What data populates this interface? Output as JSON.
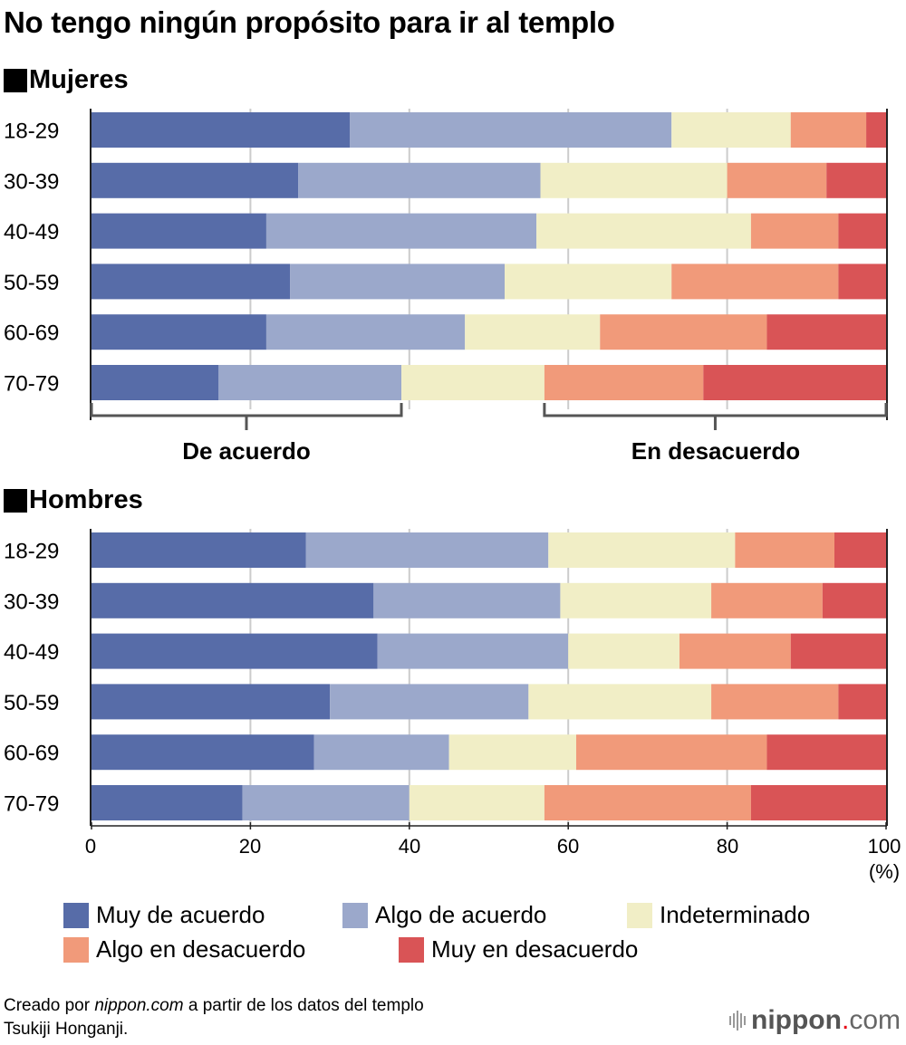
{
  "title": "No tengo ningún propósito para ir al templo",
  "sections": [
    {
      "label": "Mujeres"
    },
    {
      "label": "Hombres"
    }
  ],
  "brackets": {
    "agree": "De acuerdo",
    "disagree": "En desacuerdo"
  },
  "x_axis": {
    "ticks": [
      "0",
      "20",
      "40",
      "60",
      "80",
      "100"
    ],
    "unit": "(%)"
  },
  "legend": [
    {
      "label": "Muy de acuerdo",
      "color": "#576ca8"
    },
    {
      "label": "Algo de acuerdo",
      "color": "#9ba8cb"
    },
    {
      "label": "Indeterminado",
      "color": "#f1eec6"
    },
    {
      "label": "Algo en desacuerdo",
      "color": "#f19a7a"
    },
    {
      "label": "Muy en desacuerdo",
      "color": "#d95456"
    }
  ],
  "source": {
    "prefix": "Creado por ",
    "site": "nippon.com",
    "suffix": " a partir de los datos del templo",
    "line2": "Tsukiji Honganji."
  },
  "brand": {
    "name": "nippon",
    "dot": ".",
    "tld": "com"
  },
  "chart_data": [
    {
      "type": "bar",
      "stacked": true,
      "orientation": "horizontal",
      "title": "Mujeres",
      "xlabel": "(%)",
      "xlim": [
        0,
        100
      ],
      "xticks": [
        0,
        20,
        40,
        60,
        80,
        100
      ],
      "grid": true,
      "categories": [
        "18-29",
        "30-39",
        "40-49",
        "50-59",
        "60-69",
        "70-79"
      ],
      "series": [
        {
          "name": "Muy de acuerdo",
          "values": [
            32.5,
            26,
            22,
            25,
            22,
            16
          ]
        },
        {
          "name": "Algo de acuerdo",
          "values": [
            40.5,
            30.5,
            34,
            27,
            25,
            23
          ]
        },
        {
          "name": "Indeterminado",
          "values": [
            15,
            23.5,
            27,
            21,
            17,
            18
          ]
        },
        {
          "name": "Algo en desacuerdo",
          "values": [
            9.5,
            12.5,
            11,
            21,
            21,
            20
          ]
        },
        {
          "name": "Muy en desacuerdo",
          "values": [
            2.5,
            7.5,
            6,
            6,
            15,
            23
          ]
        }
      ]
    },
    {
      "type": "bar",
      "stacked": true,
      "orientation": "horizontal",
      "title": "Hombres",
      "xlabel": "(%)",
      "xlim": [
        0,
        100
      ],
      "xticks": [
        0,
        20,
        40,
        60,
        80,
        100
      ],
      "grid": true,
      "categories": [
        "18-29",
        "30-39",
        "40-49",
        "50-59",
        "60-69",
        "70-79"
      ],
      "series": [
        {
          "name": "Muy de acuerdo",
          "values": [
            27,
            35.5,
            36,
            30,
            28,
            19
          ]
        },
        {
          "name": "Algo de acuerdo",
          "values": [
            30.5,
            23.5,
            24,
            25,
            17,
            21
          ]
        },
        {
          "name": "Indeterminado",
          "values": [
            23.5,
            19,
            14,
            23,
            16,
            17
          ]
        },
        {
          "name": "Algo en desacuerdo",
          "values": [
            12.5,
            14,
            14,
            16,
            24,
            26
          ]
        },
        {
          "name": "Muy en desacuerdo",
          "values": [
            6.5,
            8,
            12,
            6,
            15,
            17
          ]
        }
      ]
    }
  ]
}
